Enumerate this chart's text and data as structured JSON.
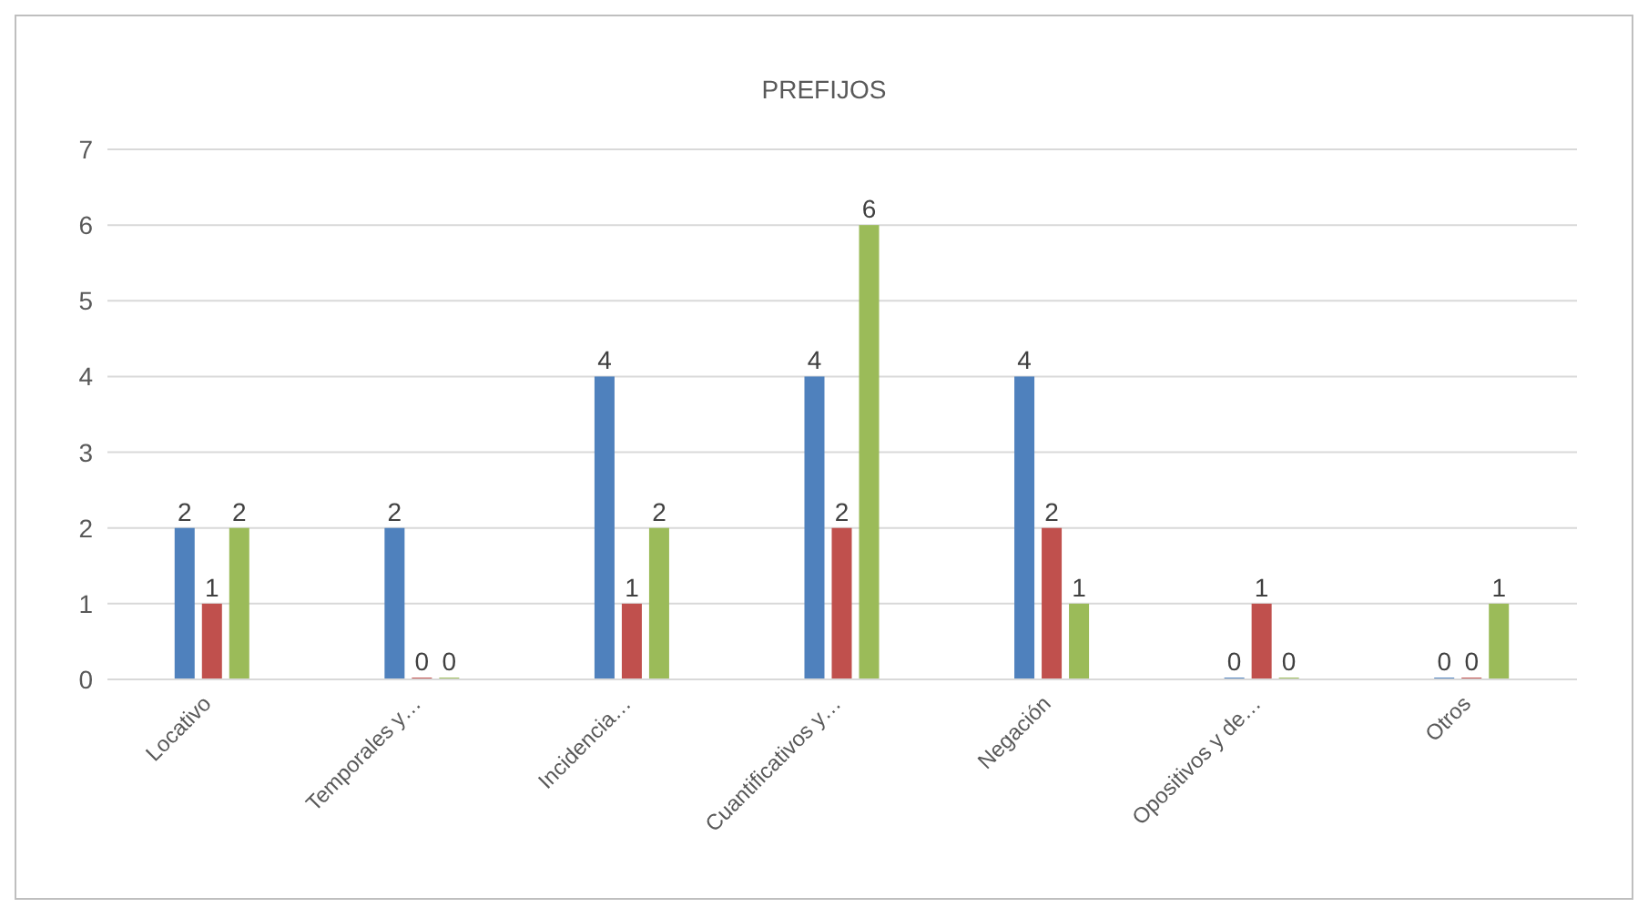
{
  "chart_data": {
    "type": "bar",
    "title": "PREFIJOS",
    "categories": [
      "Locativo",
      "Temporales y…",
      "Incidencia…",
      "Cuantificativos y…",
      "Negación",
      "Opositivos y de…",
      "Otros"
    ],
    "series": [
      {
        "color": "#4f81bd",
        "values": [
          2,
          2,
          4,
          4,
          4,
          0,
          0
        ]
      },
      {
        "color": "#c0504d",
        "values": [
          1,
          0,
          1,
          2,
          2,
          1,
          0
        ]
      },
      {
        "color": "#9bbb59",
        "values": [
          2,
          0,
          2,
          6,
          1,
          0,
          1
        ]
      }
    ],
    "ylim": [
      0,
      7
    ],
    "yticks": [
      0,
      1,
      2,
      3,
      4,
      5,
      6,
      7
    ],
    "grid": "y",
    "data_labels": true
  }
}
